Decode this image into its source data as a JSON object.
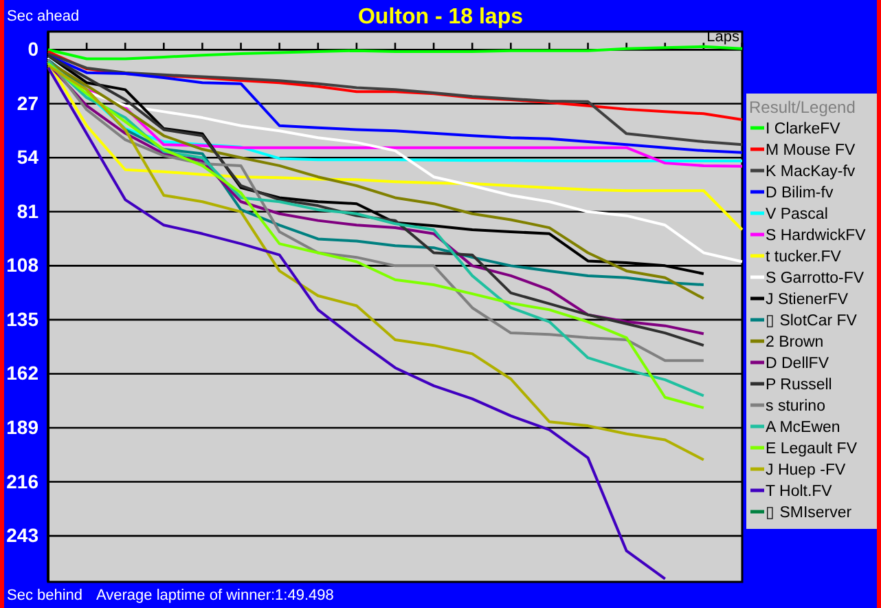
{
  "chart_data": {
    "type": "line",
    "title": "Oulton - 18 laps",
    "ylabel": "Sec ahead",
    "xlabel": "Laps",
    "legend_title": "Result/Legend",
    "annotations": [
      "Sec behind",
      "Average laptime of winner:1:49.498"
    ],
    "categories": [
      null,
      null,
      null,
      null,
      null,
      null,
      null,
      null,
      null,
      null,
      null,
      null,
      null,
      null,
      null,
      null,
      null,
      null,
      null
    ],
    "ylim": [
      266,
      -9
    ],
    "yticks": [
      0,
      27,
      54,
      81,
      108,
      135,
      162,
      189,
      216,
      243
    ],
    "tick_labels": "y",
    "grid": "y",
    "legend": "right",
    "marker": "none",
    "line_style": "solid",
    "series": [
      {
        "name": "I ClarkeFV",
        "color": "#00ff00",
        "values": [
          0,
          4.6,
          4.6,
          3.7,
          2.8,
          2,
          1.5,
          1,
          0.5,
          1,
          1,
          1,
          0.5,
          0.5,
          0.5,
          -0.5,
          -1,
          -1.5,
          -0.5
        ]
      },
      {
        "name": "M Mouse FV",
        "color": "#ff0000",
        "values": [
          1,
          9.6,
          12,
          13,
          14,
          15.4,
          16.5,
          18.4,
          21,
          21,
          22,
          24,
          25,
          26.4,
          28,
          29.8,
          31,
          32,
          35
        ]
      },
      {
        "name": "K MacKay-fv",
        "color": "#404040",
        "values": [
          2,
          9.2,
          11.5,
          12.6,
          13.5,
          14.5,
          15.5,
          17,
          19,
          20,
          21.6,
          23.4,
          24.6,
          25.7,
          26,
          42,
          44,
          46,
          47.5
        ]
      },
      {
        "name": "D Bilim-fv",
        "color": "#0000ff",
        "values": [
          3,
          11.5,
          12,
          14,
          16.5,
          17,
          38,
          39,
          40,
          40.6,
          41.8,
          43,
          44,
          44.5,
          46,
          47.5,
          49,
          50.5,
          51.4
        ]
      },
      {
        "name": "V Pascal",
        "color": "#00ffff",
        "values": [
          4,
          22,
          39.5,
          46,
          47.5,
          48.7,
          54.4,
          55,
          55,
          55,
          55.2,
          55.4,
          55.4,
          55.5,
          55.6,
          55.6,
          55.6,
          55.6,
          55.6
        ]
      },
      {
        "name": "S HardwickFV",
        "color": "#ff00ff",
        "values": [
          5,
          20,
          29,
          47.5,
          48,
          49,
          49,
          49,
          49,
          49,
          49,
          49,
          49,
          49,
          49,
          49,
          56.7,
          58,
          58.3
        ]
      },
      {
        "name": "t tucker.FV",
        "color": "#ffff00",
        "values": [
          6,
          38,
          60,
          61,
          62.4,
          63.6,
          64,
          64.7,
          65,
          66,
          66.6,
          67,
          68,
          69,
          70,
          70.5,
          70.5,
          70.5,
          90
        ]
      },
      {
        "name": "S Garrotto-FV",
        "color": "#ffffff",
        "values": [
          4,
          21,
          28,
          31,
          34,
          38,
          40.6,
          44,
          46.4,
          50.5,
          63.6,
          68,
          72.8,
          76,
          81,
          83,
          87.7,
          101.5,
          106
        ]
      },
      {
        "name": "J StienerFV",
        "color": "#000000",
        "values": [
          3,
          16.5,
          20,
          39.5,
          42,
          69,
          74,
          76,
          77,
          86.5,
          88,
          90,
          91,
          92,
          105.6,
          106.5,
          108,
          112,
          null
        ]
      },
      {
        "name": "▯ SlotCar FV",
        "color": "#008080",
        "values": [
          5,
          20,
          40,
          49.8,
          52,
          80,
          87.7,
          94.6,
          95.7,
          98,
          99,
          103.8,
          108,
          110.6,
          113,
          114,
          116.4,
          117.5,
          null
        ]
      },
      {
        "name": "2 Brown",
        "color": "#808000",
        "values": [
          6,
          18,
          30,
          43,
          49.8,
          54,
          58,
          63.6,
          68,
          74,
          77,
          82,
          85,
          89,
          101.5,
          110.6,
          114,
          124.4,
          null
        ]
      },
      {
        "name": "D DellFV",
        "color": "#800080",
        "values": [
          7,
          28,
          41.8,
          52,
          55.6,
          76,
          82,
          85.4,
          87.7,
          89,
          92,
          108,
          113,
          120,
          132.5,
          136,
          138,
          142,
          null
        ]
      },
      {
        "name": "P Russell",
        "color": "#303030",
        "values": [
          3,
          14,
          25,
          40,
          43,
          68,
          75,
          78,
          83,
          85.4,
          101.5,
          102.6,
          121.6,
          127,
          132.5,
          137,
          141.6,
          147.8,
          null
        ]
      },
      {
        "name": "s sturino",
        "color": "#808080",
        "values": [
          5,
          30,
          45,
          53,
          57,
          58,
          91,
          101.5,
          103.8,
          108,
          108,
          129,
          141.6,
          142.3,
          144,
          145,
          155.4,
          155.4,
          null
        ]
      },
      {
        "name": "A McEwen",
        "color": "#20c0a0",
        "values": [
          6,
          24,
          34,
          51,
          54,
          74,
          76,
          80,
          82,
          87,
          90,
          113,
          129,
          136,
          154,
          160,
          165,
          173,
          null
        ]
      },
      {
        "name": "E Legault FV",
        "color": "#80ff00",
        "values": [
          7,
          22,
          36,
          50,
          58,
          71.6,
          97,
          101.5,
          106,
          115,
          117.5,
          122,
          126.7,
          130,
          136,
          144,
          173.8,
          179,
          null
        ]
      },
      {
        "name": "J Huep -FV",
        "color": "#b0b000",
        "values": [
          8,
          20,
          40,
          72.8,
          76,
          81,
          110.6,
          123,
          128,
          145,
          147.8,
          152,
          164.6,
          186,
          188,
          192,
          195,
          205,
          null
        ]
      },
      {
        "name": "T Holt.FV",
        "color": "#4000c0",
        "values": [
          9,
          42,
          75,
          87.7,
          92,
          97,
          102.6,
          130,
          145,
          159,
          168,
          174.5,
          183,
          190,
          204,
          250.5,
          264.5,
          null,
          null
        ]
      },
      {
        "name": "▯ SMIserver",
        "color": "#008040",
        "values": [
          null,
          null,
          null,
          null,
          null,
          null,
          null,
          null,
          null,
          null,
          null,
          null,
          null,
          null,
          null,
          null,
          null,
          null,
          null
        ]
      }
    ]
  }
}
